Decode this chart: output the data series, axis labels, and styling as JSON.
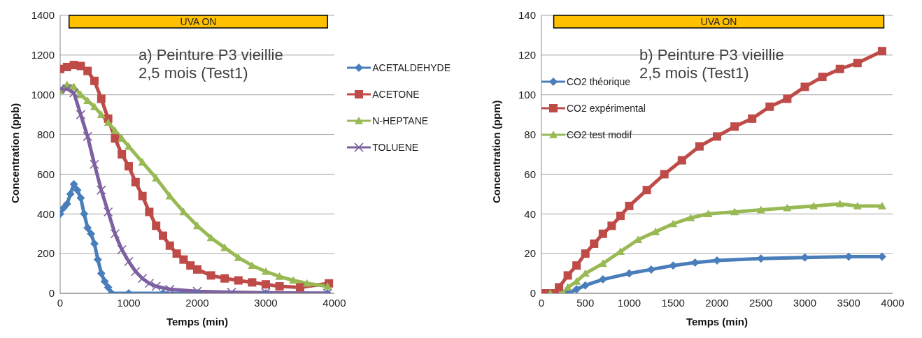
{
  "chart_data": [
    {
      "type": "line",
      "title": "a) Peinture P3 vieillie\n2,5 mois (Test1)",
      "xlabel": "Temps (min)",
      "ylabel": "Concentration (ppb)",
      "xlim": [
        0,
        4000
      ],
      "xticks": [
        0,
        1000,
        2000,
        3000,
        4000
      ],
      "ylim": [
        0,
        1400
      ],
      "yticks": [
        0,
        200,
        400,
        600,
        800,
        1000,
        1200,
        1400
      ],
      "grid": "y",
      "legend": "right",
      "bands": [
        {
          "axis": "x",
          "from": 130,
          "to": 3900,
          "label": "UVA ON",
          "color": "#ffc000"
        }
      ],
      "series": [
        {
          "name": "ACETALDEHYDE",
          "color": "#4a7ebb",
          "marker": "diamond",
          "x": [
            0,
            50,
            100,
            150,
            200,
            250,
            300,
            350,
            400,
            450,
            500,
            550,
            600,
            650,
            700,
            750,
            1000,
            1500,
            2000,
            3000,
            3900
          ],
          "values": [
            400,
            430,
            450,
            500,
            550,
            520,
            480,
            400,
            330,
            300,
            250,
            170,
            100,
            60,
            30,
            0,
            0,
            0,
            0,
            0,
            0
          ]
        },
        {
          "name": "ACETONE",
          "color": "#be4b48",
          "marker": "square",
          "x": [
            0,
            100,
            200,
            300,
            400,
            500,
            600,
            700,
            800,
            900,
            1000,
            1100,
            1200,
            1300,
            1400,
            1500,
            1600,
            1700,
            1800,
            1900,
            2000,
            2200,
            2400,
            2600,
            2800,
            3000,
            3200,
            3500,
            3920
          ],
          "values": [
            1130,
            1140,
            1150,
            1145,
            1120,
            1070,
            980,
            880,
            780,
            700,
            640,
            560,
            490,
            410,
            340,
            290,
            240,
            200,
            170,
            140,
            120,
            90,
            75,
            65,
            55,
            45,
            35,
            30,
            50
          ]
        },
        {
          "name": "N-HEPTANE",
          "color": "#98b954",
          "marker": "triangle",
          "x": [
            0,
            100,
            200,
            300,
            400,
            500,
            600,
            700,
            800,
            900,
            1000,
            1200,
            1400,
            1600,
            1800,
            2000,
            2200,
            2400,
            2600,
            2800,
            3000,
            3200,
            3400,
            3600,
            3900
          ],
          "values": [
            1020,
            1050,
            1040,
            1000,
            970,
            940,
            900,
            860,
            820,
            780,
            740,
            660,
            580,
            490,
            410,
            340,
            280,
            230,
            180,
            140,
            110,
            85,
            65,
            50,
            35
          ]
        },
        {
          "name": "TOLUENE",
          "color": "#7d60a0",
          "marker": "cross",
          "x": [
            0,
            100,
            200,
            300,
            400,
            500,
            600,
            700,
            800,
            900,
            1000,
            1100,
            1200,
            1300,
            1400,
            1600,
            2000,
            2500,
            3000,
            3900
          ],
          "values": [
            1030,
            1030,
            1010,
            900,
            790,
            650,
            520,
            410,
            300,
            220,
            160,
            110,
            75,
            50,
            35,
            20,
            10,
            5,
            3,
            0
          ]
        }
      ]
    },
    {
      "type": "line",
      "title": "b) Peinture P3 vieillie\n2,5 mois (Test1)",
      "xlabel": "Temps (min)",
      "ylabel": "Concentration (ppm)",
      "xlim": [
        0,
        4000
      ],
      "xticks": [
        0,
        500,
        1000,
        1500,
        2000,
        2500,
        3000,
        3500,
        4000
      ],
      "ylim": [
        0,
        140
      ],
      "yticks": [
        0,
        20,
        40,
        60,
        80,
        100,
        120,
        140
      ],
      "grid": "y",
      "legend": "top left",
      "bands": [
        {
          "axis": "x",
          "from": 140,
          "to": 3900,
          "label": "UVA ON",
          "color": "#ffc000"
        }
      ],
      "series": [
        {
          "name": "CO2 théorique",
          "color": "#4a7ebb",
          "marker": "diamond",
          "x": [
            300,
            400,
            500,
            700,
            1000,
            1250,
            1500,
            1750,
            2000,
            2500,
            3000,
            3500,
            3880
          ],
          "values": [
            0,
            2,
            4,
            7,
            10,
            12,
            14,
            15.5,
            16.5,
            17.5,
            18,
            18.5,
            18.5
          ]
        },
        {
          "name": "CO2 expérimental",
          "color": "#be4b48",
          "marker": "square",
          "x": [
            50,
            150,
            200,
            300,
            400,
            500,
            600,
            700,
            800,
            900,
            1000,
            1200,
            1400,
            1600,
            1800,
            2000,
            2200,
            2400,
            2600,
            2800,
            3000,
            3200,
            3400,
            3600,
            3880
          ],
          "values": [
            0,
            0,
            3,
            9,
            14,
            20,
            25,
            30,
            34,
            39,
            44,
            52,
            60,
            67,
            74,
            79,
            84,
            88,
            94,
            98,
            104,
            109,
            113,
            116,
            122
          ]
        },
        {
          "name": "CO2 test modif",
          "color": "#98b954",
          "marker": "triangle",
          "x": [
            100,
            250,
            300,
            400,
            500,
            700,
            900,
            1100,
            1300,
            1500,
            1700,
            1900,
            2200,
            2500,
            2800,
            3100,
            3400,
            3600,
            3880
          ],
          "values": [
            0,
            0,
            3,
            6,
            10,
            15,
            21,
            27,
            31,
            35,
            38,
            40,
            41,
            42,
            43,
            44,
            45,
            44,
            44
          ]
        }
      ]
    }
  ]
}
